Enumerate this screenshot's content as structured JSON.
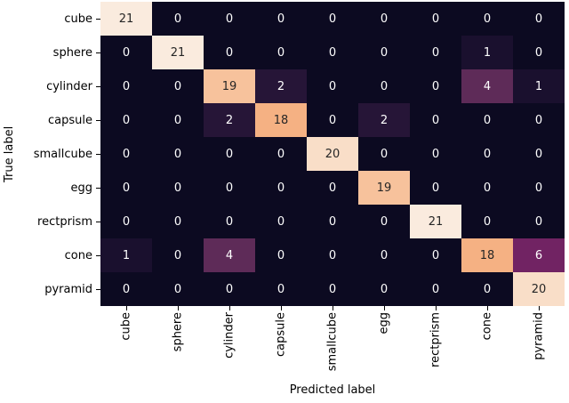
{
  "chart_data": {
    "type": "heatmap",
    "subtype": "confusion-matrix",
    "title": "",
    "xlabel": "Predicted label",
    "ylabel": "True label",
    "categories": [
      "cube",
      "sphere",
      "cylinder",
      "capsule",
      "smallcube",
      "egg",
      "rectprism",
      "cone",
      "pyramid"
    ],
    "rows": [
      [
        21,
        0,
        0,
        0,
        0,
        0,
        0,
        0,
        0
      ],
      [
        0,
        21,
        0,
        0,
        0,
        0,
        0,
        1,
        0
      ],
      [
        0,
        0,
        19,
        2,
        0,
        0,
        0,
        4,
        1
      ],
      [
        0,
        0,
        2,
        18,
        0,
        2,
        0,
        0,
        0
      ],
      [
        0,
        0,
        0,
        0,
        20,
        0,
        0,
        0,
        0
      ],
      [
        0,
        0,
        0,
        0,
        0,
        19,
        0,
        0,
        0
      ],
      [
        0,
        0,
        0,
        0,
        0,
        0,
        21,
        0,
        0
      ],
      [
        1,
        0,
        4,
        0,
        0,
        0,
        0,
        18,
        6
      ],
      [
        0,
        0,
        0,
        0,
        0,
        0,
        0,
        0,
        20
      ]
    ],
    "vmin": 0,
    "vmax": 21,
    "colormap": "rocket",
    "grid": false,
    "legend": "none",
    "value_colors": {
      "0": "#0c0a21",
      "1": "#1a102e",
      "2": "#261537",
      "4": "#5e2b58",
      "6": "#712363",
      "18": "#f5b183",
      "19": "#f7c29c",
      "20": "#f9dec8",
      "21": "#faebde"
    },
    "dark_text_min": 18,
    "light_text_color": "#ffffff",
    "dark_text_color": "#262626",
    "tick_color": "#000000"
  }
}
